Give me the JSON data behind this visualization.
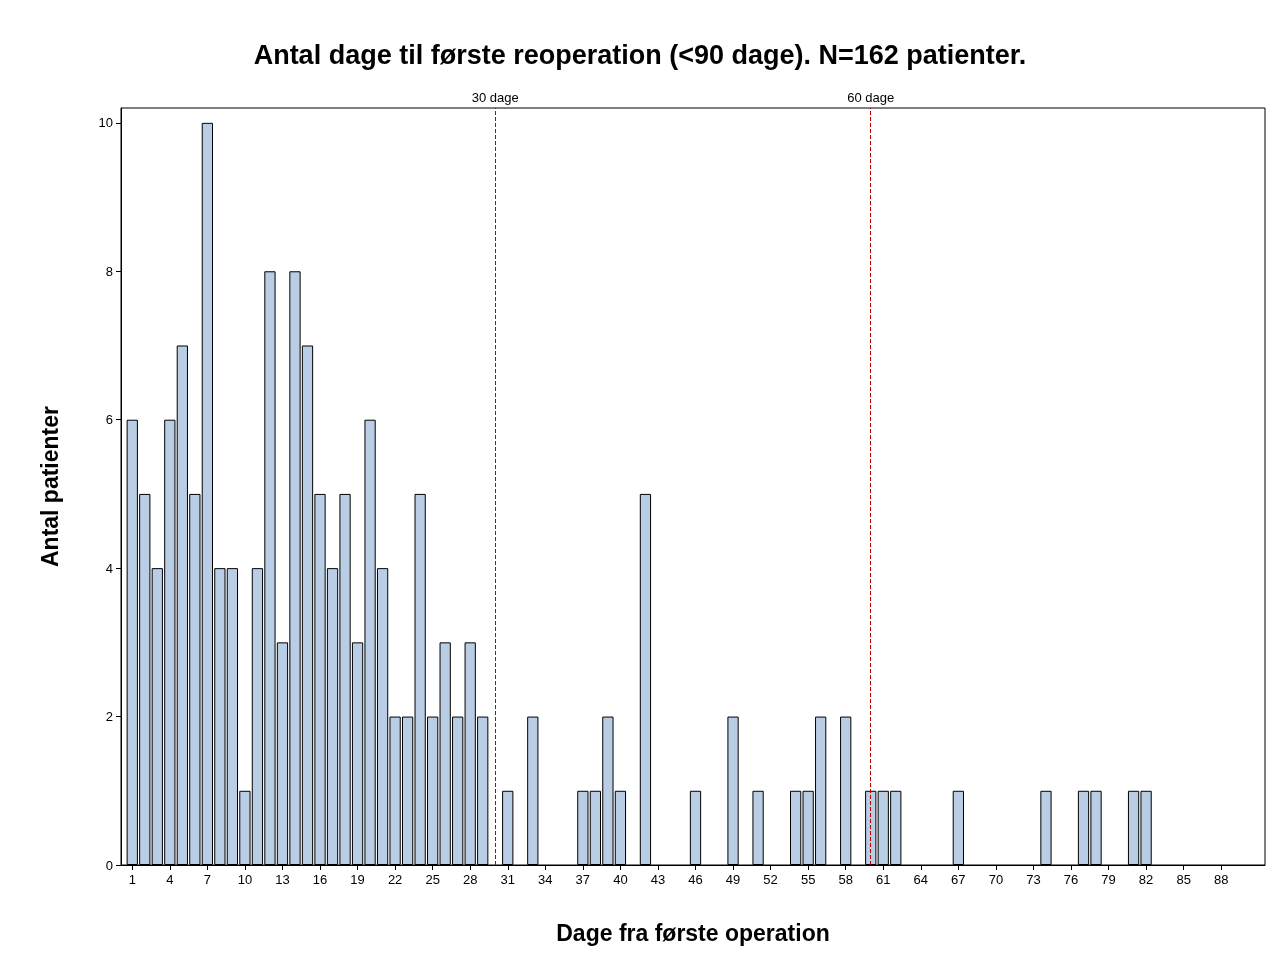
{
  "chart_data": {
    "type": "bar",
    "title": "Antal dage til første reoperation (<90 dage). N=162 patienter.",
    "xlabel": "Dage fra første operation",
    "ylabel": "Antal patienter",
    "x": [
      1,
      2,
      3,
      4,
      5,
      6,
      7,
      8,
      9,
      10,
      11,
      12,
      13,
      14,
      15,
      16,
      17,
      18,
      19,
      20,
      21,
      22,
      23,
      24,
      25,
      26,
      27,
      28,
      29,
      31,
      33,
      37,
      38,
      39,
      40,
      42,
      46,
      49,
      51,
      54,
      55,
      56,
      58,
      60,
      61,
      62,
      67,
      74,
      77,
      78,
      81,
      82
    ],
    "values": [
      6,
      5,
      4,
      6,
      7,
      5,
      10,
      4,
      4,
      1,
      4,
      8,
      3,
      8,
      7,
      5,
      4,
      5,
      3,
      6,
      4,
      2,
      2,
      5,
      2,
      3,
      2,
      3,
      2,
      1,
      2,
      1,
      1,
      2,
      1,
      5,
      1,
      2,
      1,
      1,
      1,
      2,
      2,
      1,
      1,
      1,
      1,
      1,
      1,
      1,
      1,
      1
    ],
    "color": "#b9cde5",
    "xlim": [
      0.1,
      91.5
    ],
    "xticks": [
      1,
      4,
      7,
      10,
      13,
      16,
      19,
      22,
      25,
      28,
      31,
      34,
      37,
      40,
      43,
      46,
      49,
      52,
      55,
      58,
      61,
      64,
      67,
      70,
      73,
      76,
      79,
      82,
      85,
      88
    ],
    "ylim": [
      0,
      10.2
    ],
    "yticks": [
      0,
      2,
      4,
      6,
      8,
      10
    ],
    "ref_lines": [
      {
        "axis": "x",
        "value": 30,
        "label": "30 dage",
        "color": "#c00000",
        "line_style": "dashed"
      },
      {
        "axis": "x",
        "value": 60,
        "label": "60 dage",
        "color": "#c00000",
        "line_style": "dashed"
      }
    ],
    "data_labels": false
  }
}
